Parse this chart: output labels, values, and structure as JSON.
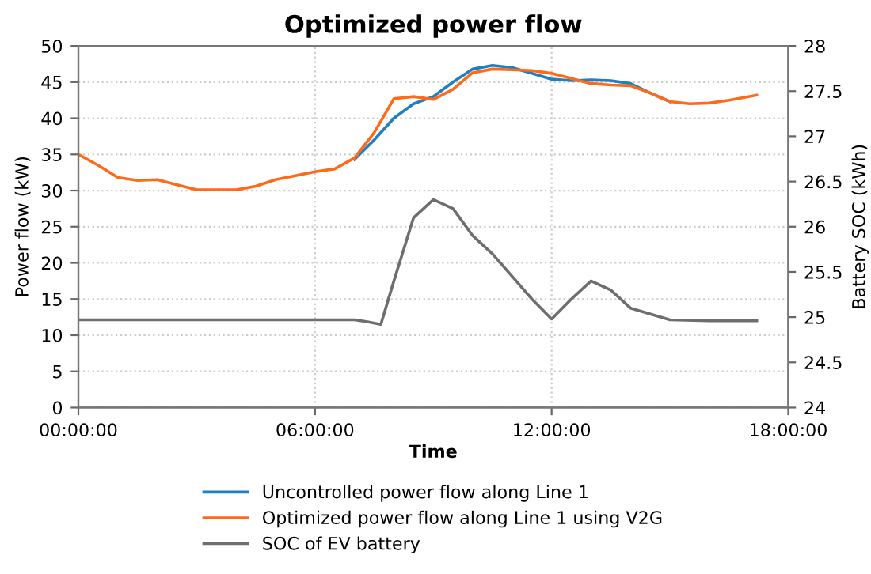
{
  "chart_data": {
    "type": "line",
    "title": "Optimized power flow",
    "xlabel": "Time",
    "ylabel": "Power flow (kW)",
    "y2label": "Battery SOC (kWh)",
    "xlim": [
      0,
      18
    ],
    "xticks": [
      {
        "value": 0,
        "label": "00:00:00"
      },
      {
        "value": 6,
        "label": "06:00:00"
      },
      {
        "value": 12,
        "label": "12:00:00"
      },
      {
        "value": 18,
        "label": "18:00:00"
      }
    ],
    "ylim": [
      0,
      50
    ],
    "yticks": [
      0,
      5,
      10,
      15,
      20,
      25,
      30,
      35,
      40,
      45,
      50
    ],
    "y2lim": [
      24,
      28
    ],
    "y2ticks": [
      24,
      24.5,
      25,
      25.5,
      26,
      26.5,
      27,
      27.5,
      28
    ],
    "grid": true,
    "legend": "bottom",
    "line_style": "solid",
    "marker": "none",
    "series": [
      {
        "name": "Uncontrolled power flow along Line 1",
        "color": "#1f7fc0",
        "x": [
          7,
          7.5,
          8,
          8.5,
          9,
          9.5,
          10,
          10.5,
          11,
          11.5,
          12,
          12.5,
          13,
          13.5,
          14,
          14.5,
          15
        ],
        "values": [
          34.3,
          37,
          40,
          42,
          43,
          45,
          46.8,
          47.3,
          47,
          46.2,
          45.4,
          45.2,
          45.3,
          45.2,
          44.8,
          43.5,
          42.3
        ]
      },
      {
        "name": "Optimized power flow along Line 1 using V2G",
        "color": "#ff6a1a",
        "x": [
          0,
          0.5,
          1,
          1.5,
          2,
          2.5,
          3,
          4,
          4.5,
          5,
          6,
          6.5,
          7,
          7.5,
          8,
          8.5,
          9,
          9.5,
          10,
          10.5,
          11,
          11.5,
          12,
          12.5,
          13,
          13.5,
          14,
          14.5,
          15,
          15.5,
          16,
          16.5,
          17.2
        ],
        "values": [
          35,
          33.5,
          31.8,
          31.4,
          31.5,
          30.8,
          30.1,
          30.1,
          30.6,
          31.5,
          32.6,
          33,
          34.5,
          38,
          42.7,
          43,
          42.6,
          44,
          46.3,
          46.8,
          46.7,
          46.6,
          46.2,
          45.5,
          44.8,
          44.6,
          44.5,
          43.5,
          42.3,
          42,
          42.1,
          42.5,
          43.2
        ]
      },
      {
        "name": "SOC of EV battery",
        "color": "#6e6e6e",
        "axis": "y2",
        "x": [
          0,
          6,
          7,
          7.3,
          7.67,
          8,
          8.5,
          9,
          9.5,
          10,
          10.5,
          11,
          11.5,
          12,
          12.5,
          13,
          13.5,
          14,
          15,
          16,
          17.2
        ],
        "values": [
          24.97,
          24.97,
          24.97,
          24.95,
          24.92,
          25.4,
          26.1,
          26.3,
          26.2,
          25.9,
          25.7,
          25.45,
          25.2,
          24.98,
          25.2,
          25.4,
          25.3,
          25.1,
          24.97,
          24.96,
          24.96
        ]
      }
    ]
  }
}
